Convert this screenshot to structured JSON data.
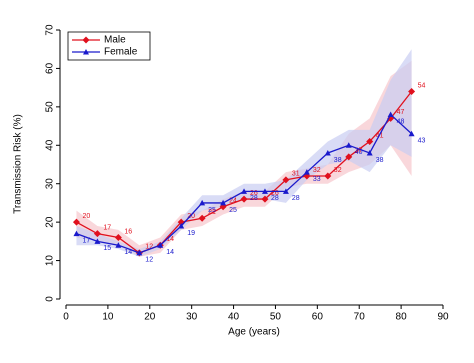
{
  "chart_data": {
    "type": "line",
    "x_label": "Age (years)",
    "y_label": "Transmission Risk (%)",
    "x": [
      2.5,
      7.5,
      12.5,
      17.5,
      22.5,
      27.5,
      32.5,
      37.5,
      42.5,
      47.5,
      52.5,
      57.5,
      62.5,
      67.5,
      72.5,
      77.5,
      82.5
    ],
    "series": [
      {
        "name": "Male",
        "color": "#e0101e",
        "band_color": "#f7c6cc",
        "marker": "diamond",
        "values": [
          20,
          17,
          16,
          12,
          14,
          20,
          21,
          24,
          26,
          26,
          31,
          32,
          32,
          37,
          41,
          47,
          54
        ],
        "ci_low": [
          16,
          15,
          14,
          11,
          12,
          18,
          19,
          22,
          24,
          24,
          29,
          30,
          30,
          33,
          35,
          40,
          32
        ],
        "ci_high": [
          23,
          19,
          18,
          14,
          16,
          22,
          23,
          26,
          28,
          28,
          33,
          34,
          35,
          43,
          47,
          58,
          62
        ]
      },
      {
        "name": "Female",
        "color": "#1a1acc",
        "band_color": "#c9cdf2",
        "marker": "triangle",
        "values": [
          17,
          15,
          14,
          12,
          14,
          19,
          25,
          25,
          28,
          28,
          28,
          33,
          38,
          40,
          38,
          48,
          43
        ],
        "ci_low": [
          14,
          14,
          13,
          11,
          13,
          18,
          23,
          24,
          26,
          26,
          25,
          31,
          35,
          36,
          33,
          40,
          37
        ],
        "ci_high": [
          19,
          17,
          15,
          13,
          15,
          21,
          27,
          27,
          30,
          30,
          31,
          36,
          41,
          44,
          44,
          57,
          65
        ]
      }
    ],
    "xlim": [
      0,
      90
    ],
    "xticks": [
      0,
      10,
      20,
      30,
      40,
      50,
      60,
      70,
      80,
      90
    ],
    "ylim": [
      0,
      70
    ],
    "yticks": [
      0,
      10,
      20,
      30,
      40,
      50,
      60,
      70
    ],
    "legend": "top-left",
    "grid": false
  }
}
